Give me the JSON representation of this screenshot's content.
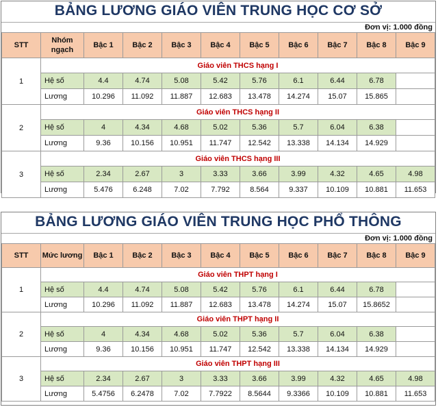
{
  "tables": [
    {
      "title": "BẢNG LƯƠNG GIÁO VIÊN TRUNG HỌC CƠ SỞ",
      "unit": "Đơn vị: 1.000 đồng",
      "headers": [
        "STT",
        "Nhóm ngạch",
        "Bậc 1",
        "Bậc 2",
        "Bậc 3",
        "Bậc 4",
        "Bậc 5",
        "Bậc 6",
        "Bậc 7",
        "Bậc 8",
        "Bậc 9"
      ],
      "groups": [
        {
          "stt": "1",
          "name": "Giáo viên THCS hạng I",
          "heso_label": "Hệ số",
          "heso": [
            "4.4",
            "4.74",
            "5.08",
            "5.42",
            "5.76",
            "6.1",
            "6.44",
            "6.78",
            ""
          ],
          "luong_label": "Lương",
          "luong": [
            "10.296",
            "11.092",
            "11.887",
            "12.683",
            "13.478",
            "14.274",
            "15.07",
            "15.865",
            ""
          ]
        },
        {
          "stt": "2",
          "name": "Giáo viên THCS hạng II",
          "heso_label": "Hệ số",
          "heso": [
            "4",
            "4.34",
            "4.68",
            "5.02",
            "5.36",
            "5.7",
            "6.04",
            "6.38",
            ""
          ],
          "luong_label": "Lương",
          "luong": [
            "9.36",
            "10.156",
            "10.951",
            "11.747",
            "12.542",
            "13.338",
            "14.134",
            "14.929",
            ""
          ]
        },
        {
          "stt": "3",
          "name": "Giáo viên THCS hạng III",
          "heso_label": "Hệ số",
          "heso": [
            "2.34",
            "2.67",
            "3",
            "3.33",
            "3.66",
            "3.99",
            "4.32",
            "4.65",
            "4.98"
          ],
          "luong_label": "Lương",
          "luong": [
            "5.476",
            "6.248",
            "7.02",
            "7.792",
            "8.564",
            "9.337",
            "10.109",
            "10.881",
            "11.653"
          ]
        }
      ]
    },
    {
      "title": "BẢNG LƯƠNG GIÁO VIÊN TRUNG HỌC PHỔ THÔNG",
      "unit": "Đơn vị: 1.000 đồng",
      "headers": [
        "STT",
        "Mức lương",
        "Bậc 1",
        "Bậc 2",
        "Bậc 3",
        "Bậc 4",
        "Bậc 5",
        "Bậc 6",
        "Bậc 7",
        "Bậc 8",
        "Bậc 9"
      ],
      "groups": [
        {
          "stt": "1",
          "name": "Giáo viên THPT hạng I",
          "heso_label": "Hệ số",
          "heso": [
            "4.4",
            "4.74",
            "5.08",
            "5.42",
            "5.76",
            "6.1",
            "6.44",
            "6.78",
            ""
          ],
          "luong_label": "Lương",
          "luong": [
            "10.296",
            "11.092",
            "11.887",
            "12.683",
            "13.478",
            "14.274",
            "15.07",
            "15.8652",
            ""
          ]
        },
        {
          "stt": "2",
          "name": "Giáo viên THPT hạng II",
          "heso_label": "Hệ số",
          "heso": [
            "4",
            "4.34",
            "4.68",
            "5.02",
            "5.36",
            "5.7",
            "6.04",
            "6.38",
            ""
          ],
          "luong_label": "Lương",
          "luong": [
            "9.36",
            "10.156",
            "10.951",
            "11.747",
            "12.542",
            "13.338",
            "14.134",
            "14.929",
            ""
          ]
        },
        {
          "stt": "3",
          "name": "Giáo viên THPT hạng III",
          "heso_label": "Hệ số",
          "heso": [
            "2.34",
            "2.67",
            "3",
            "3.33",
            "3.66",
            "3.99",
            "4.32",
            "4.65",
            "4.98"
          ],
          "luong_label": "Lương",
          "luong": [
            "5.4756",
            "6.2478",
            "7.02",
            "7.7922",
            "8.5644",
            "9.3366",
            "10.109",
            "10.881",
            "11.653"
          ]
        }
      ]
    }
  ]
}
